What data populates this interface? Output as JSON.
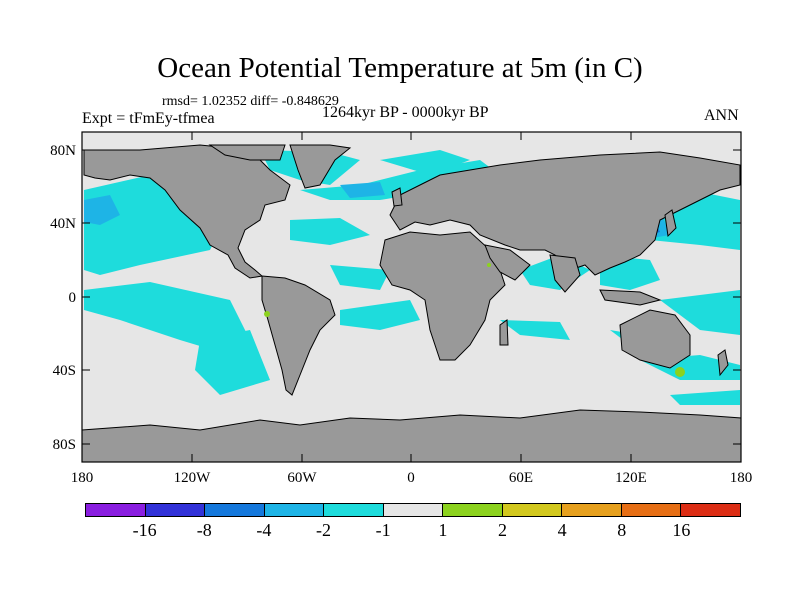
{
  "title": "Ocean Potential Temperature at 5m (in C)",
  "stats": "rmsd= 1.02352 diff= -0.848629",
  "experiment": "Expt = tFmEy-tfmea",
  "period": "1264kyr BP - 0000kyr BP",
  "season": "ANN",
  "map": {
    "x_ticks": [
      "180",
      "120W",
      "60W",
      "0",
      "60E",
      "120E",
      "180"
    ],
    "y_ticks": [
      "80N",
      "40N",
      "0",
      "40S",
      "80S"
    ],
    "land_color": "#999999",
    "ocean_neutral_color": "#e6e6e6"
  },
  "colorbar": {
    "labels": [
      "-16",
      "-8",
      "-4",
      "-2",
      "-1",
      "1",
      "2",
      "4",
      "8",
      "16"
    ],
    "colors": [
      "#8a1ee0",
      "#3232d8",
      "#1478dc",
      "#1eb4e6",
      "#1edcdc",
      "#e6e6e6",
      "#8cd21e",
      "#d2c81e",
      "#e6a01e",
      "#e66e14",
      "#dc2d14"
    ]
  }
}
